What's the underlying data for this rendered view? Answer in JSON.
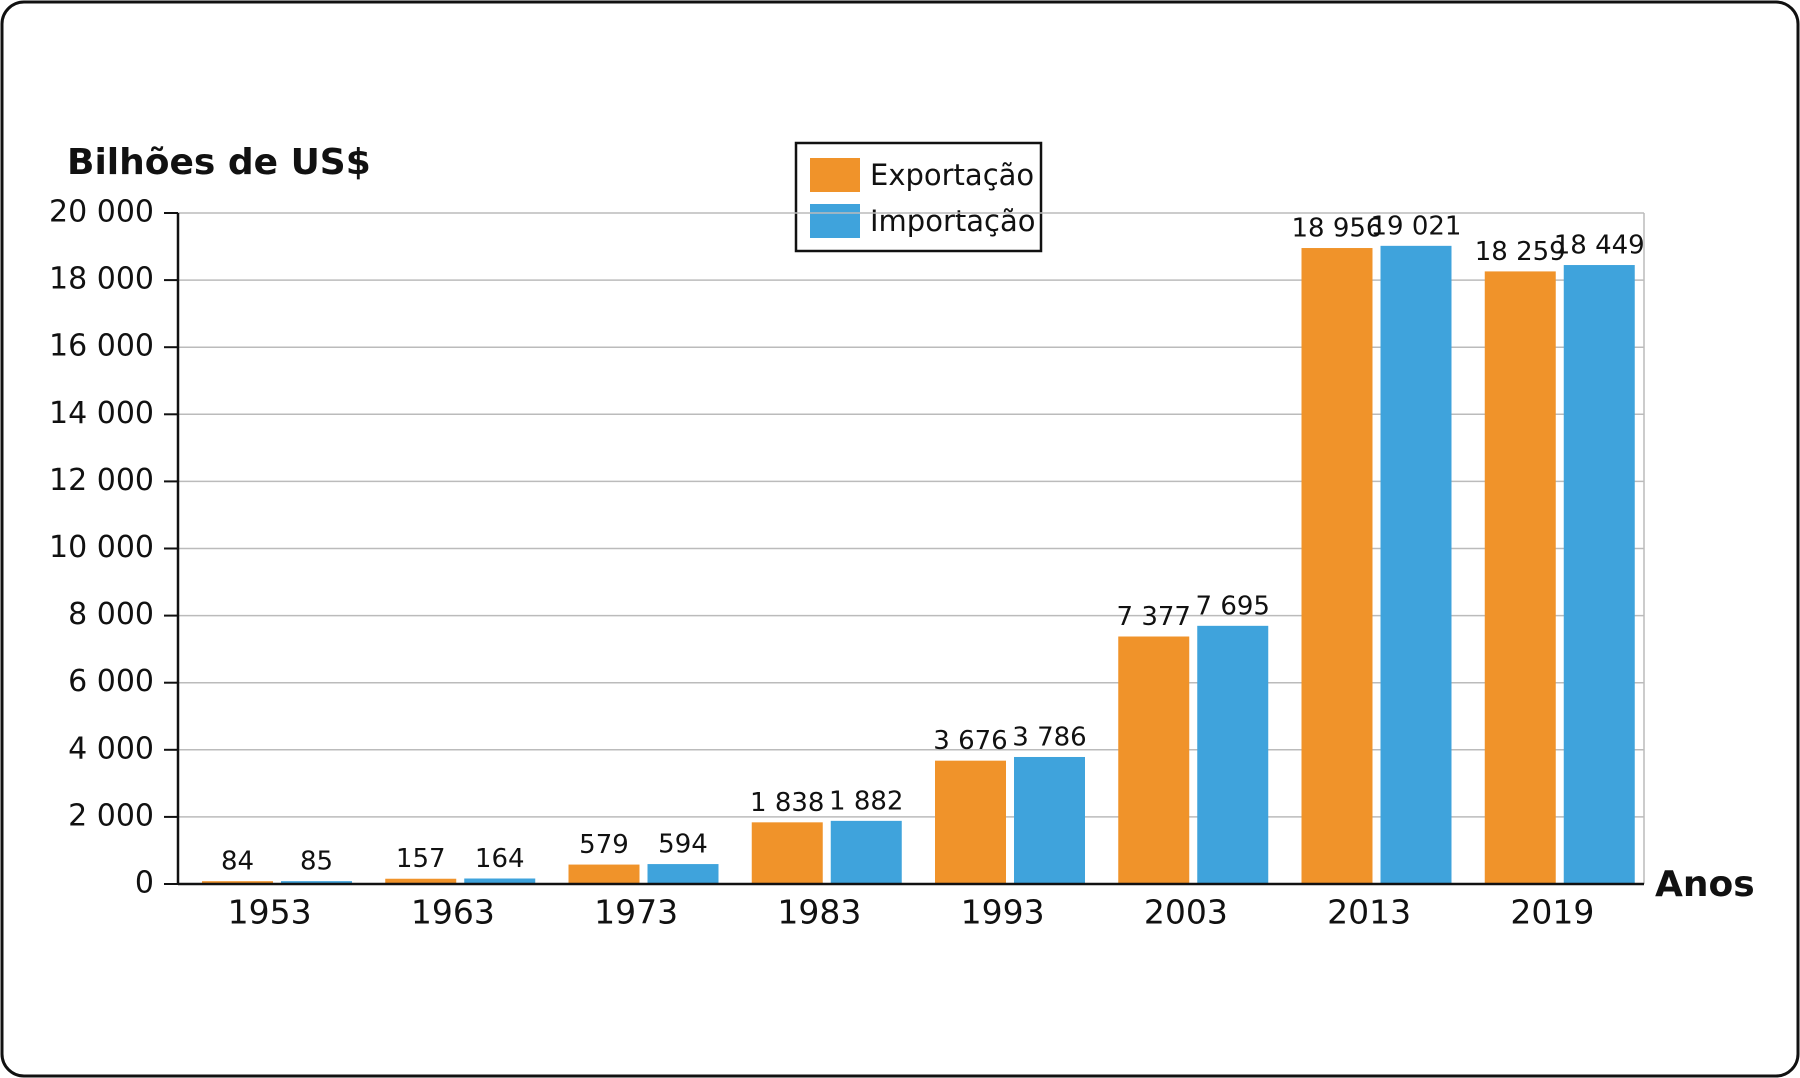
{
  "chart_data": {
    "type": "bar",
    "y_label": "Bilhões de US$",
    "x_label": "Anos",
    "categories": [
      "1953",
      "1963",
      "1973",
      "1983",
      "1993",
      "2003",
      "2013",
      "2019"
    ],
    "series": [
      {
        "name": "Exportação",
        "color": "#f0932a",
        "values": [
          84,
          157,
          579,
          1838,
          3676,
          7377,
          18956,
          18259
        ],
        "value_labels": [
          "84",
          "157",
          "579",
          "1 838",
          "3 676",
          "7 377",
          "18 956",
          "18 259"
        ]
      },
      {
        "name": "Importação",
        "color": "#3fa3dc",
        "values": [
          85,
          164,
          594,
          1882,
          3786,
          7695,
          19021,
          18449
        ],
        "value_labels": [
          "85",
          "164",
          "594",
          "1 882",
          "3 786",
          "7 695",
          "19 021",
          "18 449"
        ]
      }
    ],
    "ylim": [
      0,
      20000
    ],
    "yticks": [
      0,
      {
        "value": 2000,
        "label": "2 000"
      },
      {
        "value": 4000,
        "label": "4 000"
      },
      {
        "value": 6000,
        "label": "6 000"
      },
      {
        "value": 8000,
        "label": "8 000"
      },
      {
        "value": 10000,
        "label": "10 000"
      },
      {
        "value": 12000,
        "label": "12 000"
      },
      {
        "value": 14000,
        "label": "14 000"
      },
      {
        "value": 16000,
        "label": "16 000"
      },
      {
        "value": 18000,
        "label": "18 000"
      },
      {
        "value": 20000,
        "label": "20 000"
      }
    ],
    "grid": true,
    "legend": "top"
  }
}
